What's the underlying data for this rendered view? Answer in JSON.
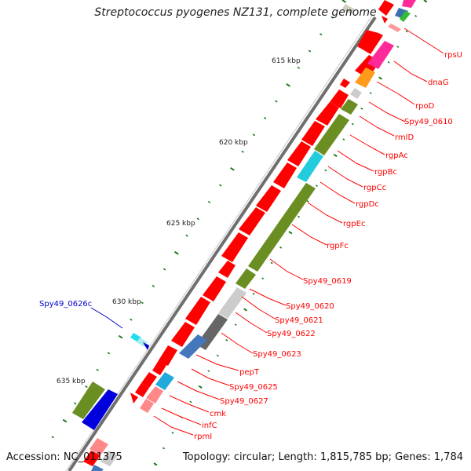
{
  "title": "Streptococcus pyogenes NZ131, complete genome",
  "footer": {
    "accession": "Accession: NC_011375",
    "summary": "Topology: circular; Length: 1,815,785 bp; Genes: 1,784"
  },
  "tick_labels": [
    "615 kbp",
    "620 kbp",
    "625 kbp",
    "630 kbp",
    "635 kbp"
  ],
  "genes": [
    {
      "name": "rpsU",
      "color": "#ff0000"
    },
    {
      "name": "dnaG",
      "color": "#ff0000"
    },
    {
      "name": "rpoD",
      "color": "#ff0000"
    },
    {
      "name": "Spy49_0610",
      "color": "#ff0000"
    },
    {
      "name": "rmlD",
      "color": "#ff0000"
    },
    {
      "name": "rgpAc",
      "color": "#ff0000"
    },
    {
      "name": "rgpBc",
      "color": "#ff0000"
    },
    {
      "name": "rgpCc",
      "color": "#ff0000"
    },
    {
      "name": "rgpDc",
      "color": "#ff0000"
    },
    {
      "name": "rgpEc",
      "color": "#ff0000"
    },
    {
      "name": "rgpFc",
      "color": "#ff0000"
    },
    {
      "name": "Spy49_0619",
      "color": "#ff0000"
    },
    {
      "name": "Spy49_0620",
      "color": "#ff0000"
    },
    {
      "name": "Spy49_0621",
      "color": "#ff0000"
    },
    {
      "name": "Spy49_0622",
      "color": "#ff0000"
    },
    {
      "name": "Spy49_0623",
      "color": "#ff0000"
    },
    {
      "name": "pepT",
      "color": "#ff0000"
    },
    {
      "name": "Spy49_0625",
      "color": "#ff0000"
    },
    {
      "name": "Spy49_0627",
      "color": "#ff0000"
    },
    {
      "name": "cmk",
      "color": "#ff0000"
    },
    {
      "name": "infC",
      "color": "#ff0000"
    },
    {
      "name": "rpmI",
      "color": "#ff0000"
    },
    {
      "name": "Spy49_0626c",
      "color": "#0000cc"
    }
  ]
}
